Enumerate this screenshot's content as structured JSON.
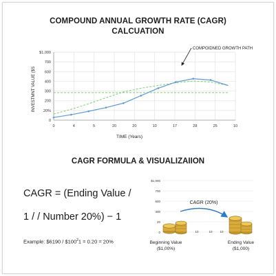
{
  "header": {
    "title_line1": "COMPOUND ANNUAL GROWTH RATE (CAGR)",
    "title_line2": "CALCUATION"
  },
  "chart_data": [
    {
      "type": "line",
      "title": "COMPOUND ANNUAL GROWTH RATE (CAGR) CALCUATION",
      "xlabel": "TIME (Years)",
      "ylabel": "INVESTMNT VALUE ($S",
      "x_ticks": [
        "0",
        "4",
        "5",
        "20",
        "20",
        "10",
        "17",
        "28",
        "25",
        "10"
      ],
      "y_ticks": [
        "0",
        "20%",
        "200",
        "300",
        "400",
        "600",
        "700",
        "$1,000"
      ],
      "ylim_labels_top": "$1,000",
      "grid": true,
      "annotation": "COMPOIDNED GROWTH PATH",
      "series": [
        {
          "values": [
            40,
            80,
            130,
            185,
            250,
            360,
            470,
            560,
            610,
            590,
            510
          ]
        },
        {
          "values": [
            90,
            160,
            240,
            330,
            415,
            470,
            510,
            550,
            575,
            560,
            510
          ]
        },
        {
          "values": [
            405,
            405,
            405,
            405,
            405,
            405,
            405,
            405,
            405,
            405,
            405
          ]
        }
      ],
      "colors": {
        "actual": "#5b9bd5",
        "compounded": "#7ccf6f",
        "level": "#7ccf6f"
      }
    },
    {
      "type": "line",
      "title": "",
      "y_ticks": [
        "$1,000",
        "700",
        "600",
        "300",
        "20",
        "0"
      ],
      "x_ticks": [
        "4",
        "10",
        "10",
        "10"
      ],
      "annotation": "CAGR (20%)",
      "start_label": "Beginning Value",
      "start_value": "($1,00%)",
      "end_label": "Ending Value",
      "end_value": "($1,000)",
      "grid": true
    }
  ],
  "formula": {
    "section_title": "CAGR FORMULA & VISUALIZAIION",
    "line1": "CAGR = (Ending Value /",
    "line2": "1 / / Number 20%) − 1",
    "example_prefix": "Example: $6190 / $100",
    "example_sup": "2",
    "example_suffix": "1 = 0.20 = 20%"
  }
}
